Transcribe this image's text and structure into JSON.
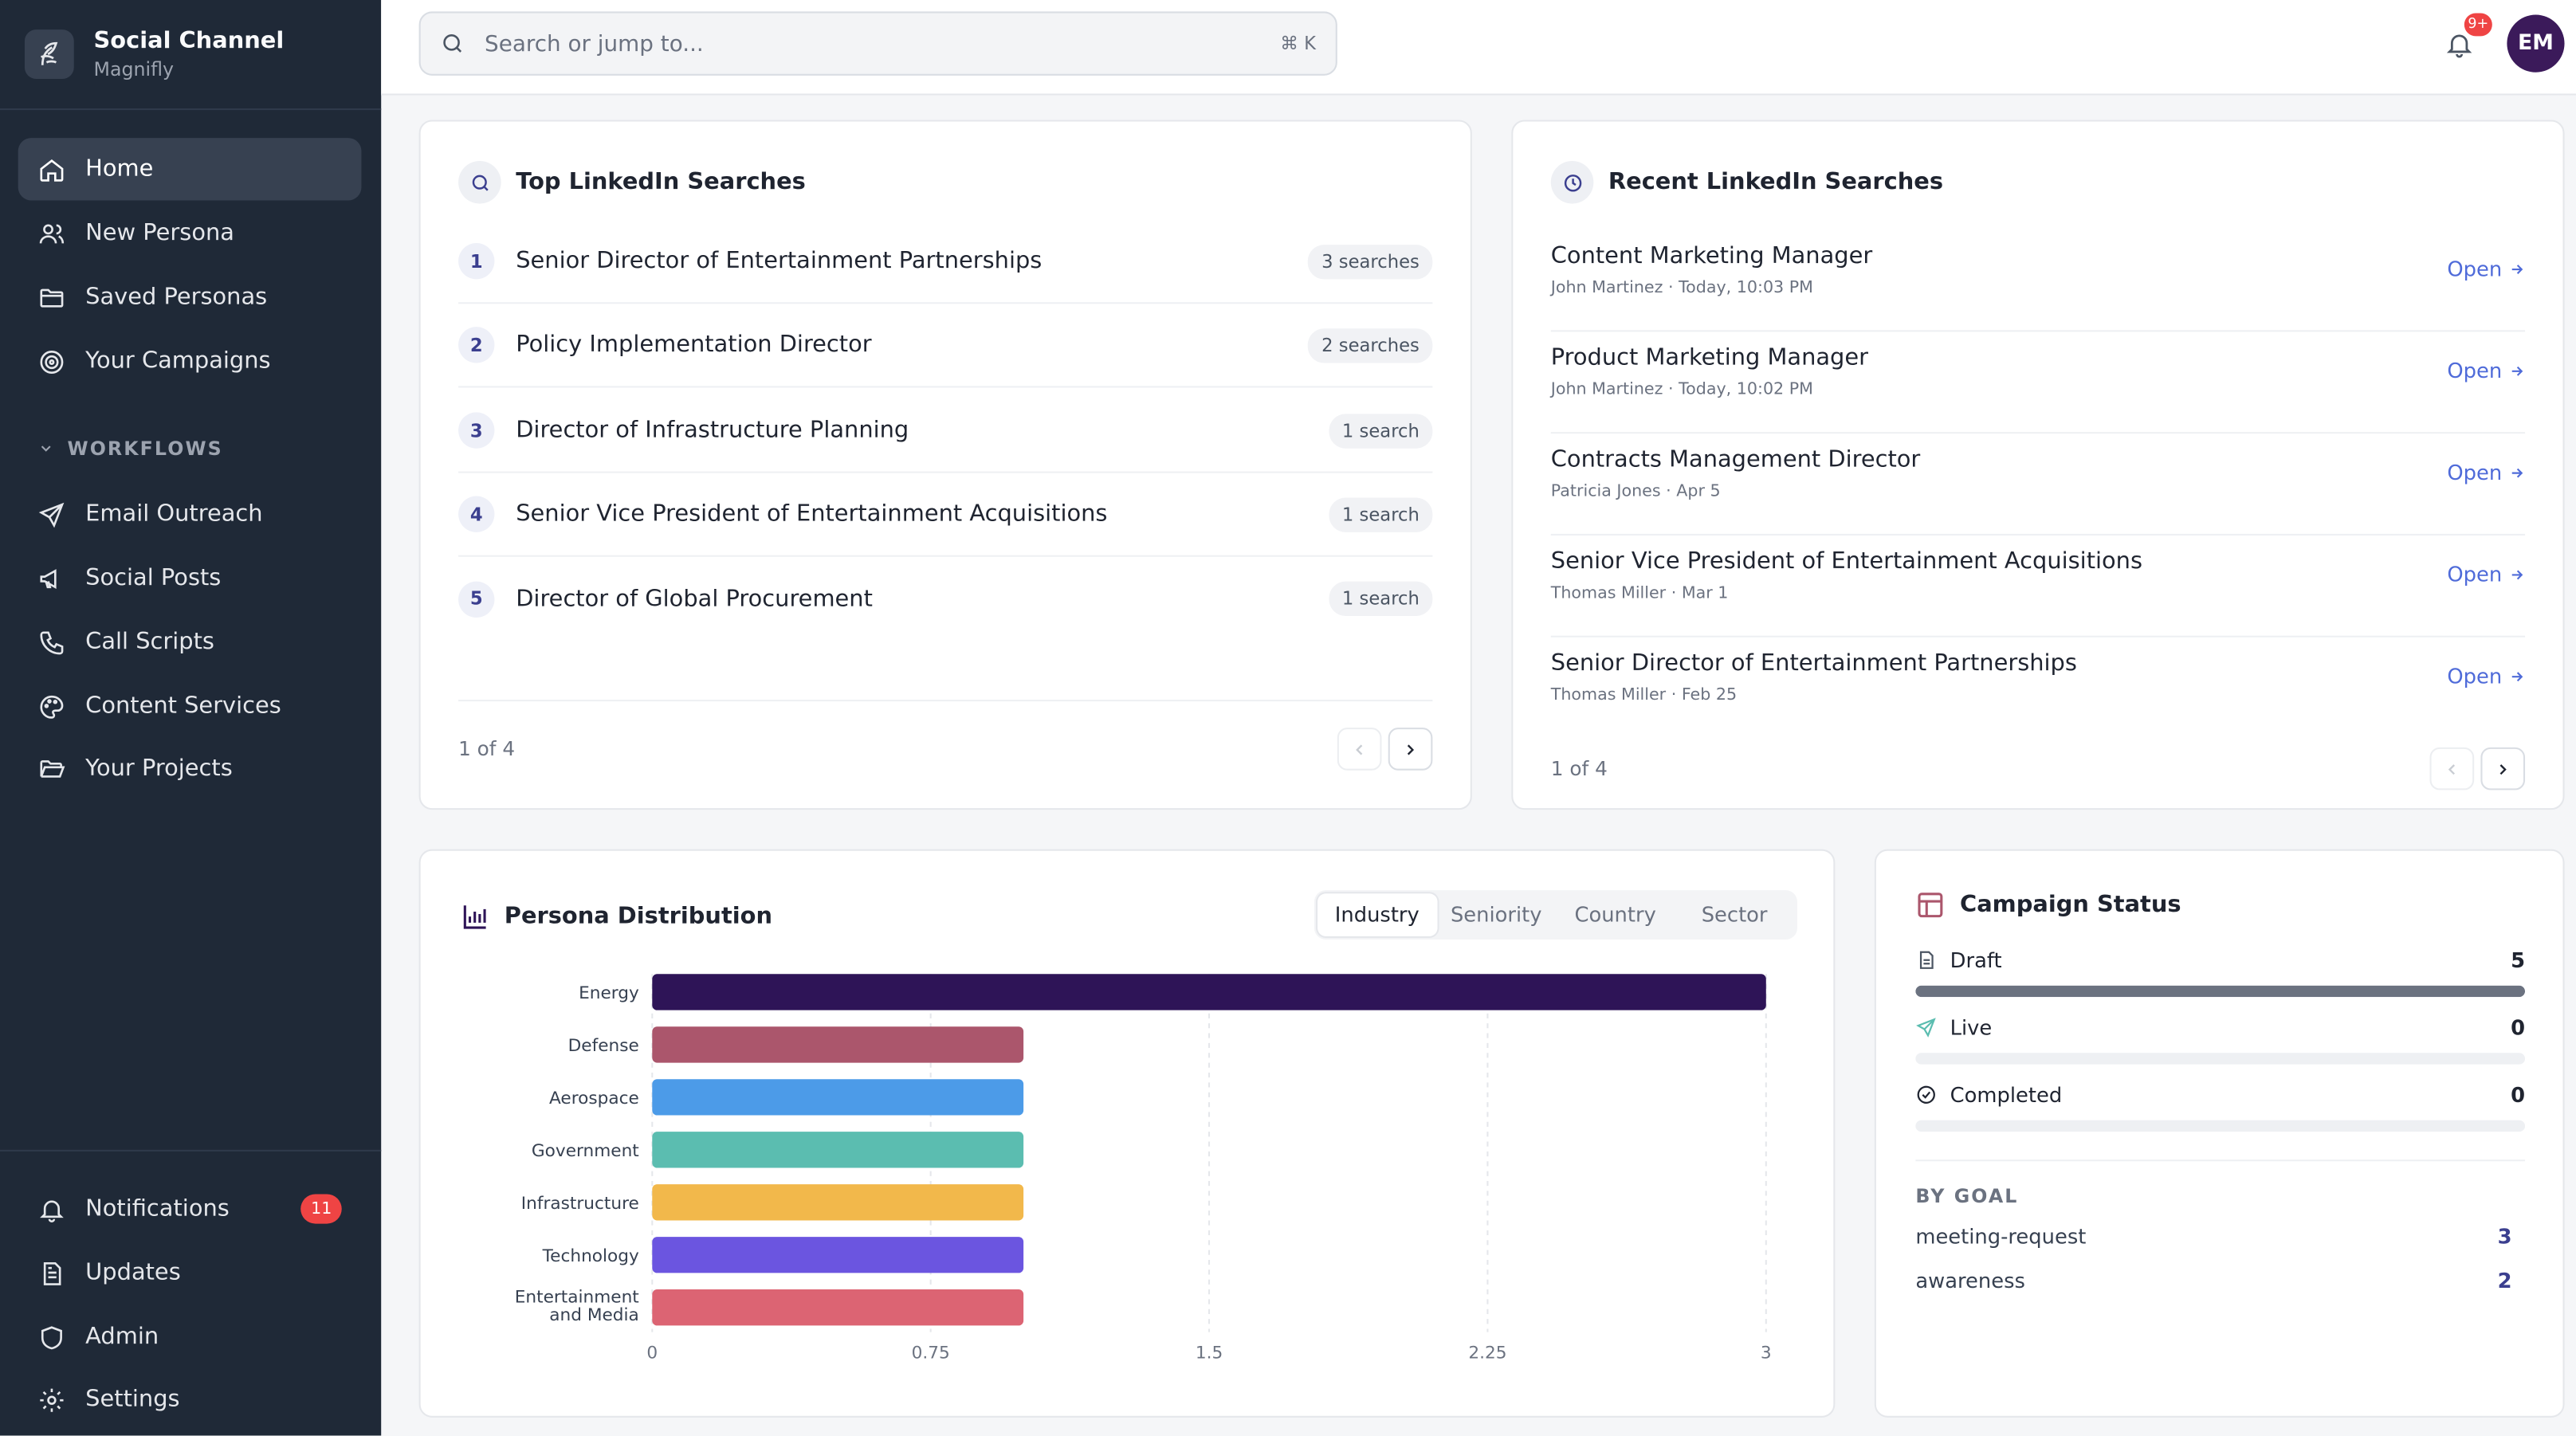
{
  "brand": {
    "title": "Social Channel",
    "subtitle": "Magnifly"
  },
  "sidebar": {
    "main": [
      {
        "label": "Home",
        "icon": "home-icon",
        "active": true
      },
      {
        "label": "New Persona",
        "icon": "users-icon"
      },
      {
        "label": "Saved Personas",
        "icon": "folder-icon"
      },
      {
        "label": "Your Campaigns",
        "icon": "target-icon"
      }
    ],
    "section_label": "WORKFLOWS",
    "workflows": [
      {
        "label": "Email Outreach",
        "icon": "send-icon"
      },
      {
        "label": "Social Posts",
        "icon": "megaphone-icon"
      },
      {
        "label": "Call Scripts",
        "icon": "phone-icon"
      },
      {
        "label": "Content Services",
        "icon": "palette-icon"
      },
      {
        "label": "Your Projects",
        "icon": "folder-open-icon"
      }
    ],
    "bottom": [
      {
        "label": "Notifications",
        "icon": "bell-icon",
        "badge": "11"
      },
      {
        "label": "Updates",
        "icon": "document-icon"
      },
      {
        "label": "Admin",
        "icon": "shield-icon"
      },
      {
        "label": "Settings",
        "icon": "gear-icon"
      }
    ]
  },
  "topbar": {
    "search_placeholder": "Search or jump to...",
    "shortcut": "⌘ K",
    "notif_badge": "9+",
    "avatar_initials": "EM"
  },
  "top_searches": {
    "title": "Top LinkedIn Searches",
    "items": [
      {
        "rank": "1",
        "label": "Senior Director of Entertainment Partnerships",
        "count": "3 searches"
      },
      {
        "rank": "2",
        "label": "Policy Implementation Director",
        "count": "2 searches"
      },
      {
        "rank": "3",
        "label": "Director of Infrastructure Planning",
        "count": "1 search"
      },
      {
        "rank": "4",
        "label": "Senior Vice President of Entertainment Acquisitions",
        "count": "1 search"
      },
      {
        "rank": "5",
        "label": "Director of Global Procurement",
        "count": "1 search"
      }
    ],
    "pager": "1 of 4"
  },
  "recent_searches": {
    "title": "Recent LinkedIn Searches",
    "open_label": "Open",
    "items": [
      {
        "title": "Content Marketing Manager",
        "meta": "John Martinez · Today, 10:03 PM"
      },
      {
        "title": "Product Marketing Manager",
        "meta": "John Martinez · Today, 10:02 PM"
      },
      {
        "title": "Contracts Management Director",
        "meta": "Patricia Jones · Apr 5"
      },
      {
        "title": "Senior Vice President of Entertainment Acquisitions",
        "meta": "Thomas Miller · Mar 1"
      },
      {
        "title": "Senior Director of Entertainment Partnerships",
        "meta": "Thomas Miller · Feb 25"
      }
    ],
    "pager": "1 of 4"
  },
  "persona_distribution": {
    "title": "Persona Distribution",
    "tabs": [
      "Industry",
      "Seniority",
      "Country",
      "Sector"
    ],
    "active_tab": "Industry"
  },
  "chart_data": {
    "type": "bar",
    "orientation": "horizontal",
    "categories": [
      "Energy",
      "Defense",
      "Aerospace",
      "Government",
      "Infrastructure",
      "Technology",
      "Entertainment and Media"
    ],
    "values": [
      3,
      1,
      1,
      1,
      1,
      1,
      1
    ],
    "colors": [
      "#2e1457",
      "#ab566c",
      "#4c9be8",
      "#5bbdb0",
      "#f2b84b",
      "#6b55e0",
      "#dc6473"
    ],
    "xticks": [
      "0",
      "0.75",
      "1.5",
      "2.25",
      "3"
    ],
    "xlim": [
      0,
      3
    ],
    "grid": "vertical-dashed"
  },
  "campaign_status": {
    "title": "Campaign Status",
    "rows": [
      {
        "label": "Draft",
        "count": "5",
        "fraction": 1.0,
        "icon": "file-icon"
      },
      {
        "label": "Live",
        "count": "0",
        "fraction": 0,
        "icon": "send-icon"
      },
      {
        "label": "Completed",
        "count": "0",
        "fraction": 0,
        "icon": "check-circle-icon"
      }
    ],
    "goal_label": "BY GOAL",
    "goals": [
      {
        "label": "meeting-request",
        "count": "3"
      },
      {
        "label": "awareness",
        "count": "2"
      }
    ]
  }
}
